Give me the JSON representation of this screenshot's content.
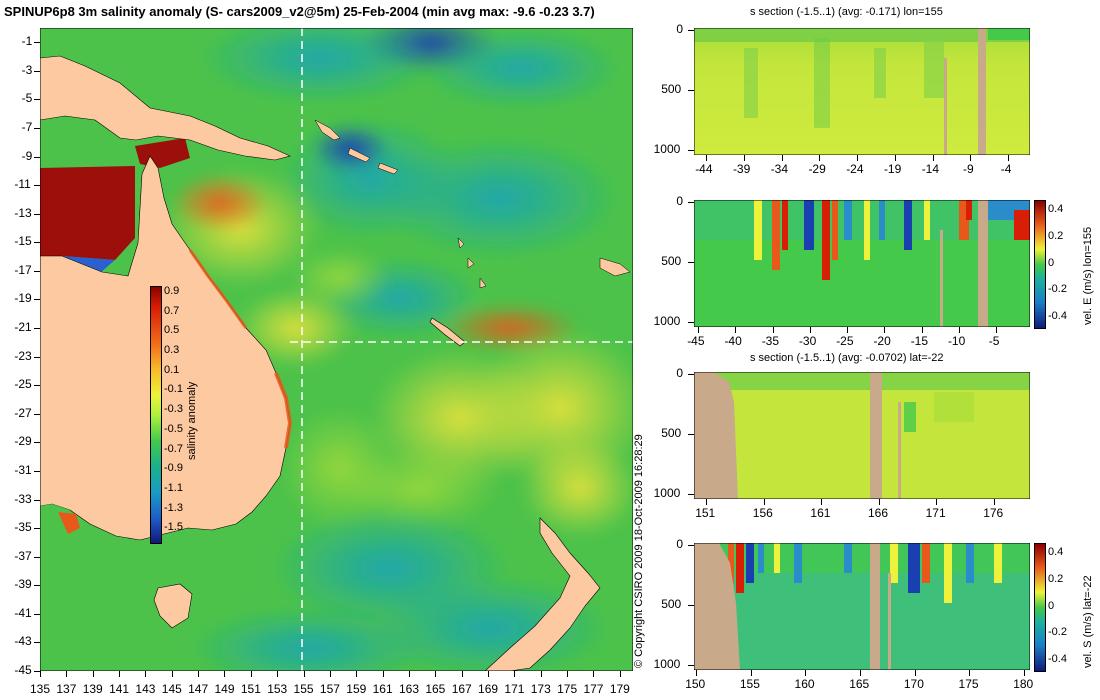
{
  "main_title": "SPINUP6p8 3m salinity anomaly (S- cars2009_v2@5m) 25-Feb-2004 (min avg max: -9.6 -0.23 3.7)",
  "copyright": "© Copyright CSIRO 2009   18-Oct-2009 16:28:29",
  "map": {
    "y_ticks": [
      "-1",
      "-3",
      "-5",
      "-7",
      "-9",
      "-11",
      "-13",
      "-15",
      "-17",
      "-19",
      "-21",
      "-23",
      "-25",
      "-27",
      "-29",
      "-31",
      "-33",
      "-35",
      "-37",
      "-39",
      "-41",
      "-43",
      "-45"
    ],
    "x_ticks": [
      "135",
      "137",
      "139",
      "141",
      "143",
      "145",
      "147",
      "149",
      "151",
      "153",
      "155",
      "157",
      "159",
      "161",
      "163",
      "165",
      "167",
      "169",
      "171",
      "173",
      "175",
      "177",
      "179"
    ],
    "lon_range": [
      135,
      180
    ],
    "lat_range": [
      0,
      -45
    ],
    "section_lon": 155,
    "section_lat": -22,
    "colorbar": {
      "label": "salinity anomaly",
      "ticks": [
        "0.9",
        "0.7",
        "0.5",
        "0.3",
        "0.1",
        "-0.1",
        "-0.3",
        "-0.5",
        "-0.7",
        "-0.9",
        "-1.1",
        "-1.3",
        "-1.5"
      ]
    }
  },
  "panels": [
    {
      "key": "p1",
      "title": "s section (-1.5..1) (avg: -0.171) lon=155",
      "y_ticks": [
        "0",
        "500",
        "1000"
      ],
      "x_ticks": [
        "-44",
        "-39",
        "-34",
        "-29",
        "-24",
        "-19",
        "-14",
        "-9",
        "-4"
      ],
      "side_label": ""
    },
    {
      "key": "p2",
      "title": "",
      "y_ticks": [
        "0",
        "500",
        "1000"
      ],
      "x_ticks": [
        "-45",
        "-40",
        "-35",
        "-30",
        "-25",
        "-20",
        "-15",
        "-10",
        "-5"
      ],
      "side_label": "vel. E (m/s) lon=155",
      "colorbar_ticks": [
        "0.4",
        "0.2",
        "0",
        "-0.2",
        "-0.4"
      ]
    },
    {
      "key": "p3",
      "title": "s section (-1.5..1) (avg: -0.0702) lat=-22",
      "y_ticks": [
        "0",
        "500",
        "1000"
      ],
      "x_ticks": [
        "151",
        "156",
        "161",
        "166",
        "171",
        "176"
      ],
      "side_label": ""
    },
    {
      "key": "p4",
      "title": "",
      "y_ticks": [
        "0",
        "500",
        "1000"
      ],
      "x_ticks": [
        "150",
        "155",
        "160",
        "165",
        "170",
        "175",
        "180"
      ],
      "side_label": "vel. S (m/s) lat=-22",
      "colorbar_ticks": [
        "0.4",
        "0.2",
        "0",
        "-0.2",
        "-0.4"
      ]
    }
  ],
  "colors": {
    "land": "#fdc9a0",
    "seafloor": "#c8a98a",
    "ocean_base": "#4cc24a",
    "warm": "#f2e53a",
    "hot": "#e8581a",
    "extreme": "#9c0f0a",
    "cool": "#1fa0a0",
    "cold": "#1848b8"
  }
}
